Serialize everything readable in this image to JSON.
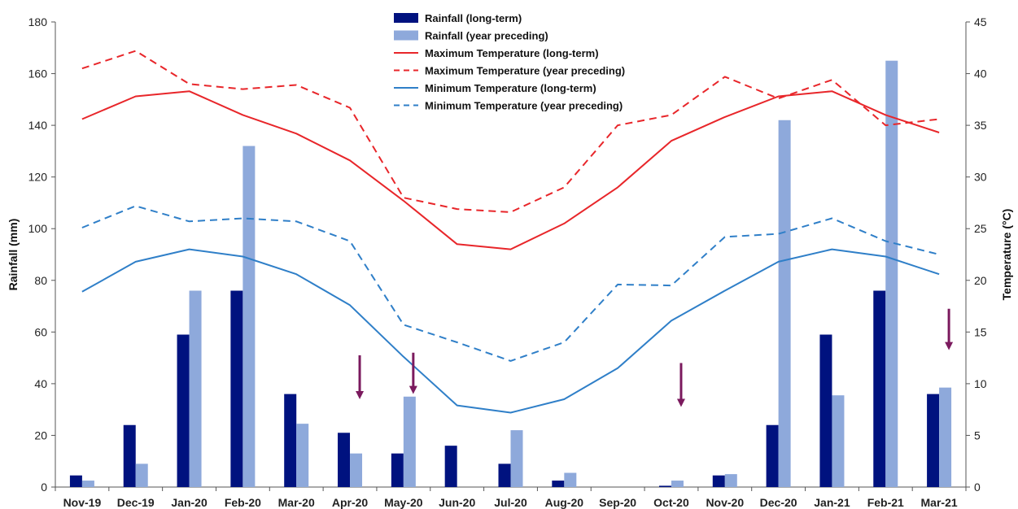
{
  "chart_data": {
    "type": "bar",
    "categories": [
      "Nov-19",
      "Dec-19",
      "Jan-20",
      "Feb-20",
      "Mar-20",
      "Apr-20",
      "May-20",
      "Jun-20",
      "Jul-20",
      "Aug-20",
      "Sep-20",
      "Oct-20",
      "Nov-20",
      "Dec-20",
      "Jan-21",
      "Feb-21",
      "Mar-21"
    ],
    "ylabel": "Rainfall (mm)",
    "ylim": [
      0,
      180
    ],
    "yticks": [
      "0",
      "20",
      "40",
      "60",
      "80",
      "100",
      "120",
      "140",
      "160",
      "180"
    ],
    "y2label": "Temperature (°C)",
    "y2lim": [
      0,
      45
    ],
    "y2ticks": [
      "0",
      "5",
      "10",
      "15",
      "20",
      "25",
      "30",
      "35",
      "40",
      "45"
    ],
    "legend_placement": "top-center",
    "grid": false,
    "series": [
      {
        "name": "Rainfall (long-term)",
        "kind": "bar",
        "axis": "left",
        "color": "#00127f",
        "values": [
          4.5,
          24,
          59,
          76,
          36,
          21,
          13,
          16,
          9,
          2.5,
          0,
          0.5,
          4.5,
          24,
          59,
          76,
          36
        ]
      },
      {
        "name": "Rainfall (year preceding)",
        "kind": "bar",
        "axis": "left",
        "color": "#8ea9db",
        "values": [
          2.5,
          9,
          76,
          132,
          24.5,
          13,
          35,
          0,
          22,
          5.5,
          0,
          2.5,
          5,
          142,
          35.5,
          165,
          38.5
        ]
      },
      {
        "name": "Maximum Temperature (long-term)",
        "kind": "line",
        "dash": "solid",
        "axis": "right",
        "color": "#e8262a",
        "values": [
          35.6,
          37.8,
          38.3,
          36,
          34.2,
          31.6,
          27.7,
          23.5,
          23,
          25.5,
          29,
          33.5,
          35.8,
          37.8,
          38.3,
          36,
          34.3
        ]
      },
      {
        "name": "Maximum Temperature (year preceding)",
        "kind": "line",
        "dash": "dashed",
        "axis": "right",
        "color": "#e8262a",
        "values": [
          40.5,
          42.2,
          39,
          38.5,
          38.9,
          36.7,
          28,
          26.9,
          26.6,
          29,
          35,
          36,
          39.7,
          37.6,
          39.4,
          35,
          35.6
        ]
      },
      {
        "name": "Minimum Temperature (long-term)",
        "kind": "line",
        "dash": "solid",
        "axis": "right",
        "color": "#2f7fc8",
        "values": [
          18.9,
          21.8,
          23,
          22.3,
          20.6,
          17.6,
          12.6,
          7.9,
          7.2,
          8.5,
          11.5,
          16.1,
          19,
          21.8,
          23,
          22.3,
          20.6
        ]
      },
      {
        "name": "Minimum Temperature (year preceding)",
        "kind": "line",
        "dash": "dashed",
        "axis": "right",
        "color": "#2f7fc8",
        "values": [
          25.1,
          27.2,
          25.7,
          26,
          25.7,
          23.8,
          15.7,
          14,
          12.2,
          14,
          19.6,
          19.5,
          24.2,
          24.5,
          26,
          23.8,
          22.5
        ]
      }
    ],
    "annotations": [
      {
        "type": "arrow",
        "direction": "down",
        "color": "#7b1a5e",
        "category": "Apr-20",
        "from_rain": 51,
        "to_rain": 34
      },
      {
        "type": "arrow",
        "direction": "down",
        "color": "#7b1a5e",
        "category": "May-20",
        "from_rain": 52,
        "to_rain": 36
      },
      {
        "type": "arrow",
        "direction": "down",
        "color": "#7b1a5e",
        "category": "Oct-20",
        "from_rain": 48,
        "to_rain": 31
      },
      {
        "type": "arrow",
        "direction": "down",
        "color": "#7b1a5e",
        "category": "Mar-21",
        "from_rain": 69,
        "to_rain": 53
      }
    ]
  }
}
